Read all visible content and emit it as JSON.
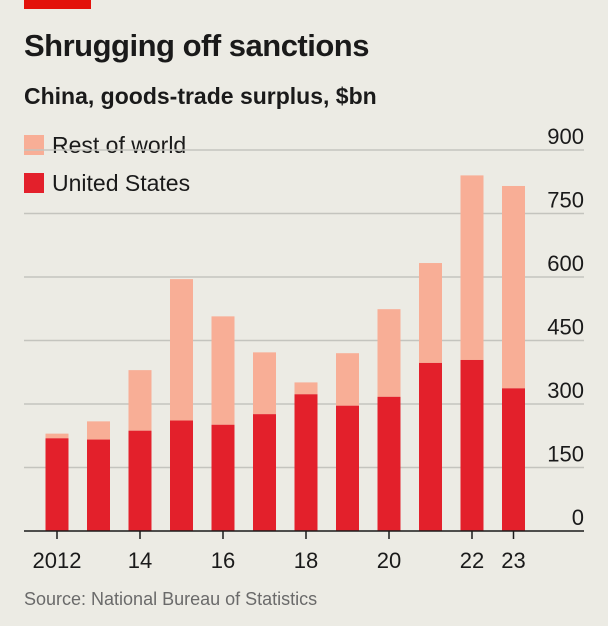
{
  "header": {
    "title": "Shrugging off sanctions",
    "subtitle": "China, goods-trade surplus, $bn"
  },
  "footer": {
    "source": "Source: National Bureau of Statistics"
  },
  "colors": {
    "accent": "#e3120b",
    "united_states": "#e3202b",
    "rest_of_world": "#f8ae96",
    "background": "#ecebe4",
    "grid": "#c4c4be"
  },
  "chart_data": {
    "type": "bar",
    "stacked": true,
    "categories": [
      "2012",
      "2013",
      "2014",
      "2015",
      "2016",
      "2017",
      "2018",
      "2019",
      "2020",
      "2021",
      "2022",
      "2023"
    ],
    "x_tick_labels": [
      {
        "index": 0,
        "label": "2012"
      },
      {
        "index": 2,
        "label": "14"
      },
      {
        "index": 4,
        "label": "16"
      },
      {
        "index": 6,
        "label": "18"
      },
      {
        "index": 8,
        "label": "20"
      },
      {
        "index": 10,
        "label": "22"
      },
      {
        "index": 11,
        "label": "23"
      }
    ],
    "series": [
      {
        "name": "United States",
        "values": [
          219,
          216,
          237,
          261,
          251,
          276,
          323,
          296,
          317,
          397,
          404,
          337
        ]
      },
      {
        "name": "Rest of world",
        "values": [
          11,
          43,
          143,
          334,
          256,
          146,
          28,
          124,
          207,
          236,
          436,
          478
        ]
      }
    ],
    "ylim": [
      0,
      900
    ],
    "y_ticks": [
      0,
      150,
      300,
      450,
      600,
      750,
      900
    ],
    "y_axis_position": "right",
    "legend_position": "top-left",
    "grid": true
  }
}
